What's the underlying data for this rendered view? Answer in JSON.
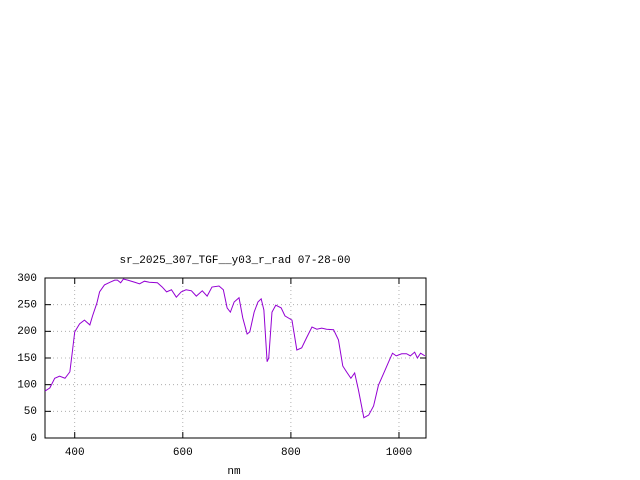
{
  "chart_data": {
    "type": "line",
    "title": "sr_2025_307_TGF__y03_r_rad 07-28-00",
    "x_label": "nm",
    "x": [
      345,
      354,
      363,
      372,
      382,
      391,
      396,
      400,
      409,
      418,
      428,
      433,
      441,
      446,
      455,
      465,
      474,
      479,
      485,
      490,
      498,
      511,
      520,
      529,
      538,
      553,
      562,
      570,
      579,
      588,
      597,
      606,
      616,
      625,
      636,
      645,
      654,
      667,
      675,
      682,
      688,
      695,
      704,
      711,
      719,
      724,
      732,
      739,
      745,
      750,
      756,
      759,
      765,
      772,
      782,
      789,
      802,
      811,
      820,
      829,
      839,
      848,
      857,
      866,
      879,
      888,
      896,
      903,
      911,
      918,
      925,
      935,
      944,
      953,
      962,
      972,
      981,
      988,
      995,
      1005,
      1014,
      1021,
      1029,
      1034,
      1040,
      1048
    ],
    "series": [
      {
        "color": "#9400d3",
        "values": [
          88,
          94,
          112,
          116,
          112,
          124,
          165,
          199,
          214,
          221,
          212,
          229,
          253,
          274,
          287,
          292,
          296,
          296,
          291,
          298,
          296,
          292,
          289,
          294,
          292,
          291,
          283,
          274,
          278,
          264,
          274,
          278,
          276,
          266,
          276,
          266,
          283,
          285,
          278,
          244,
          236,
          255,
          263,
          225,
          195,
          199,
          236,
          255,
          261,
          240,
          143,
          150,
          236,
          249,
          244,
          229,
          221,
          165,
          169,
          188,
          208,
          204,
          206,
          204,
          203,
          184,
          135,
          124,
          112,
          122,
          90,
          38,
          43,
          60,
          99,
          122,
          143,
          159,
          154,
          158,
          158,
          154,
          161,
          150,
          159,
          154
        ]
      }
    ],
    "xlim": [
      345,
      1050
    ],
    "ylim": [
      0,
      300
    ],
    "xticks": [
      400,
      600,
      800,
      1000
    ],
    "yticks": [
      0,
      50,
      100,
      150,
      200,
      250,
      300
    ],
    "grid": true
  }
}
